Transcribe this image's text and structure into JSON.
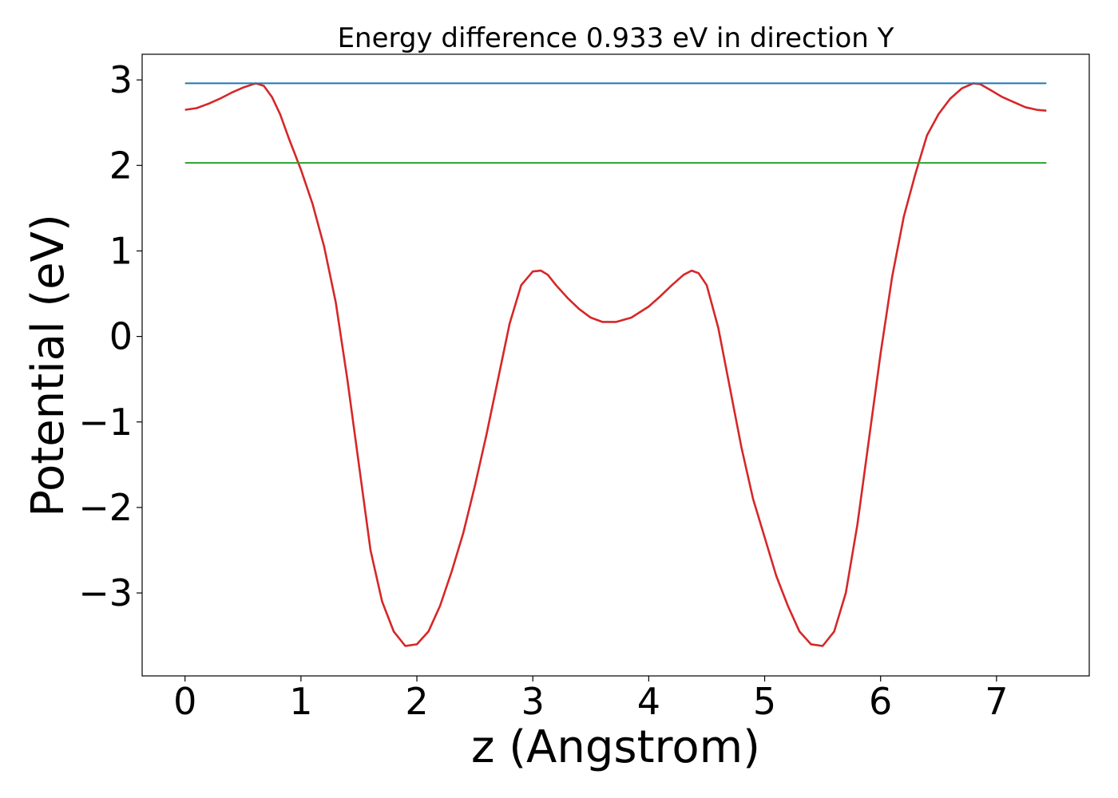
{
  "chart_data": {
    "type": "line",
    "title": "Energy difference 0.933 eV in direction Y",
    "xlabel": "z (Angstrom)",
    "ylabel": "Potential (eV)",
    "xlim": [
      -0.37,
      7.8
    ],
    "ylim": [
      -3.97,
      3.3
    ],
    "xticks": [
      0,
      1,
      2,
      3,
      4,
      5,
      6,
      7
    ],
    "yticks": [
      -3,
      -2,
      -1,
      0,
      1,
      2,
      3
    ],
    "xtick_labels": [
      "0",
      "1",
      "2",
      "3",
      "4",
      "5",
      "6",
      "7"
    ],
    "ytick_labels": [
      "−3",
      "−2",
      "−1",
      "0",
      "1",
      "2",
      "3"
    ],
    "grid": false,
    "series": [
      {
        "color": "#d62728",
        "x": [
          0.0,
          0.1,
          0.2,
          0.3,
          0.4,
          0.5,
          0.61,
          0.68,
          0.75,
          0.82,
          0.9,
          1.0,
          1.1,
          1.2,
          1.3,
          1.4,
          1.5,
          1.6,
          1.7,
          1.8,
          1.9,
          2.0,
          2.1,
          2.2,
          2.3,
          2.4,
          2.5,
          2.6,
          2.7,
          2.8,
          2.9,
          3.0,
          3.07,
          3.13,
          3.2,
          3.3,
          3.4,
          3.5,
          3.6,
          3.72,
          3.85,
          4.0,
          4.1,
          4.2,
          4.3,
          4.37,
          4.43,
          4.5,
          4.6,
          4.7,
          4.8,
          4.9,
          5.0,
          5.1,
          5.2,
          5.3,
          5.4,
          5.5,
          5.6,
          5.7,
          5.8,
          5.9,
          6.0,
          6.1,
          6.2,
          6.3,
          6.4,
          6.5,
          6.6,
          6.7,
          6.8,
          6.86,
          6.95,
          7.05,
          7.15,
          7.25,
          7.35,
          7.43
        ],
        "y": [
          2.65,
          2.67,
          2.72,
          2.78,
          2.85,
          2.91,
          2.96,
          2.93,
          2.8,
          2.6,
          2.3,
          1.95,
          1.55,
          1.05,
          0.4,
          -0.5,
          -1.5,
          -2.5,
          -3.1,
          -3.45,
          -3.62,
          -3.6,
          -3.45,
          -3.15,
          -2.75,
          -2.3,
          -1.75,
          -1.15,
          -0.5,
          0.15,
          0.6,
          0.76,
          0.77,
          0.72,
          0.6,
          0.45,
          0.32,
          0.22,
          0.17,
          0.17,
          0.22,
          0.35,
          0.47,
          0.6,
          0.72,
          0.77,
          0.74,
          0.6,
          0.1,
          -0.6,
          -1.3,
          -1.9,
          -2.35,
          -2.8,
          -3.15,
          -3.45,
          -3.6,
          -3.62,
          -3.45,
          -3.0,
          -2.2,
          -1.2,
          -0.2,
          0.7,
          1.4,
          1.9,
          2.35,
          2.6,
          2.78,
          2.9,
          2.96,
          2.95,
          2.88,
          2.8,
          2.74,
          2.68,
          2.65,
          2.64
        ]
      },
      {
        "color": "#1f77b4",
        "x": [
          0.0,
          7.43
        ],
        "y": [
          2.96,
          2.96
        ]
      },
      {
        "color": "#2ca02c",
        "x": [
          0.0,
          7.43
        ],
        "y": [
          2.03,
          2.03
        ]
      }
    ]
  }
}
